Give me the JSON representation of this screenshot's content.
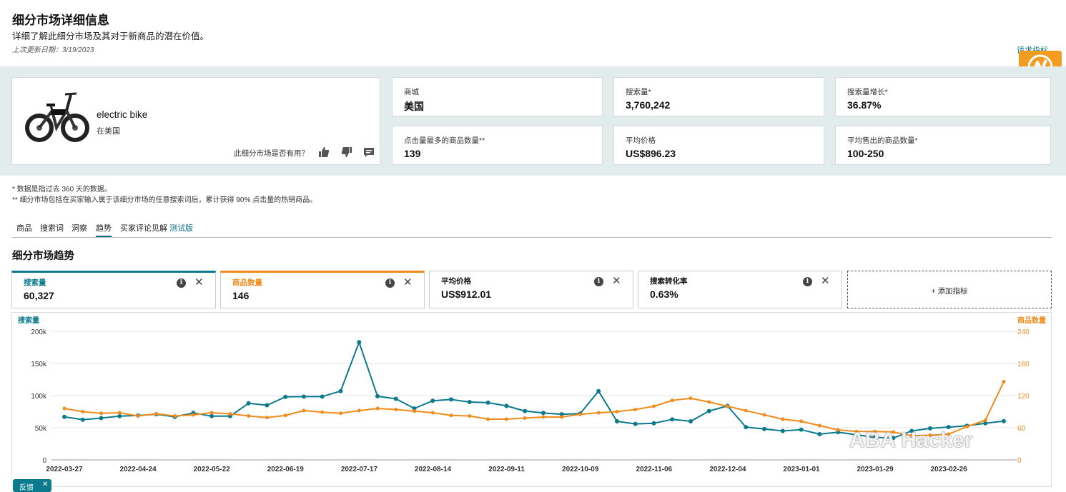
{
  "header": {
    "title": "细分市场详细信息",
    "subtitle": "详细了解此细分市场及其对于新商品的潜在价值。",
    "updated": "上次更新日期：3/19/2023",
    "request_link": "请求指标"
  },
  "product": {
    "name": "electric bike",
    "market": "在美国",
    "useful_question": "此细分市场是否有用？"
  },
  "metrics": [
    {
      "label": "商城",
      "value": "美国"
    },
    {
      "label": "搜索量*",
      "value": "3,760,242"
    },
    {
      "label": "搜索量增长*",
      "value": "36.87%"
    },
    {
      "label": "点击量最多的商品数量**",
      "value": "139"
    },
    {
      "label": "平均价格",
      "value": "US$896.23"
    },
    {
      "label": "平均售出的商品数量*",
      "value": "100-250"
    }
  ],
  "footnotes": [
    "* 数据是指过去 360 天的数据。",
    "** 细分市场包括在买家输入属于该细分市场的任意搜索词后，累计获得 90% 点击量的热销商品。"
  ],
  "tabs": [
    "商品",
    "搜索词",
    "洞察",
    "趋势",
    "买家评论见解"
  ],
  "tab_beta": "测试版",
  "trend_title": "细分市场趋势",
  "trend_cards": [
    {
      "label": "搜索量",
      "value": "60,327",
      "color": "#0b7a8c"
    },
    {
      "label": "商品数量",
      "value": "146",
      "color": "#f08c1c"
    },
    {
      "label": "平均价格",
      "value": "US$912.01",
      "color": "#111111"
    },
    {
      "label": "搜索转化率",
      "value": "0.63%",
      "color": "#111111"
    }
  ],
  "add_metric": "+ 添加指标",
  "chip_label": "反馈",
  "watermark": "ABA Hacker",
  "chart_data": {
    "type": "line",
    "left_axis_label": "搜索量",
    "right_axis_label": "商品数量",
    "left_ticks": [
      "200k",
      "150k",
      "100k",
      "50k",
      "0"
    ],
    "right_ticks": [
      "240",
      "180",
      "120",
      "60",
      "0"
    ],
    "ylim_left": [
      0,
      200000
    ],
    "ylim_right": [
      0,
      240
    ],
    "x_labels": [
      "2022-03-27",
      "2022-04-24",
      "2022-05-22",
      "2022-06-19",
      "2022-07-17",
      "2022-08-14",
      "2022-09-11",
      "2022-10-09",
      "2022-11-06",
      "2022-12-04",
      "2023-01-01",
      "2023-01-29",
      "2023-02-26"
    ],
    "series": [
      {
        "name": "搜索量",
        "axis": "left",
        "color": "#0b7a8c",
        "values": [
          67000,
          62500,
          65000,
          68000,
          69000,
          71000,
          67000,
          73000,
          68000,
          68000,
          88000,
          85000,
          98000,
          98500,
          98500,
          107000,
          183000,
          99000,
          95000,
          80000,
          92000,
          94000,
          90000,
          89000,
          84000,
          76000,
          73000,
          71000,
          72000,
          107000,
          60000,
          56000,
          57000,
          63000,
          60000,
          76000,
          84000,
          51000,
          48000,
          45000,
          47000,
          40000,
          43000,
          39000,
          35000,
          34000,
          45000,
          49000,
          51000,
          53000,
          57000,
          60327
        ]
      },
      {
        "name": "商品数量",
        "axis": "right",
        "color": "#f08c1c",
        "values": [
          96,
          90,
          87,
          88,
          82,
          86,
          82,
          84,
          88,
          86,
          82,
          79,
          83,
          92,
          89,
          87,
          92,
          96,
          94,
          91,
          88,
          83,
          82,
          76,
          76,
          78,
          80,
          80,
          85,
          88,
          90,
          94,
          100,
          111,
          115,
          108,
          100,
          92,
          84,
          76,
          72,
          64,
          56,
          53,
          53,
          52,
          45,
          46,
          48,
          62,
          74,
          146
        ]
      }
    ]
  }
}
